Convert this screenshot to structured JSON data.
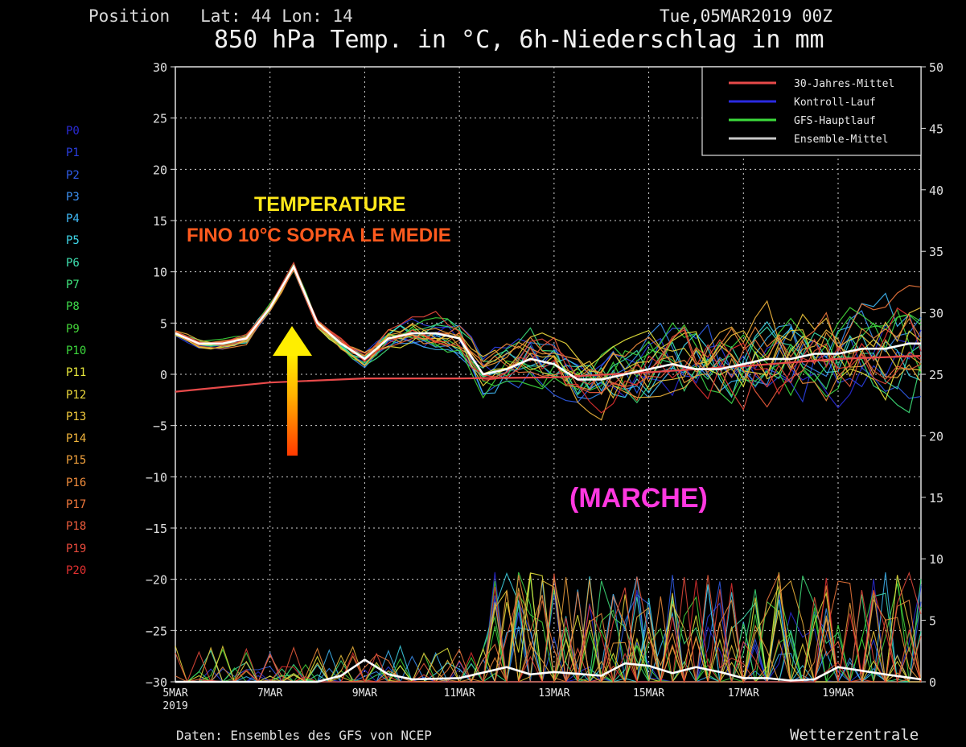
{
  "header": {
    "position": "Position   Lat: 44 Lon: 14",
    "date": "Tue,05MAR2019 00Z",
    "title": "850 hPa Temp. in °C, 6h-Niederschlag in mm"
  },
  "footer": {
    "source": "Daten: Ensembles des GFS von NCEP",
    "brand": "Wetterzentrale"
  },
  "members": [
    {
      "label": "P0",
      "color": "#2a2ad6"
    },
    {
      "label": "P1",
      "color": "#2a3ee0"
    },
    {
      "label": "P2",
      "color": "#2f5ce8"
    },
    {
      "label": "P3",
      "color": "#3b8ff0"
    },
    {
      "label": "P4",
      "color": "#3fb7f4"
    },
    {
      "label": "P5",
      "color": "#3ed6e8"
    },
    {
      "label": "P6",
      "color": "#3ee0b0"
    },
    {
      "label": "P7",
      "color": "#3ee07a"
    },
    {
      "label": "P8",
      "color": "#3ed84a"
    },
    {
      "label": "P9",
      "color": "#45d63a"
    },
    {
      "label": "P10",
      "color": "#3cd63c"
    },
    {
      "label": "P11",
      "color": "#e8e83c"
    },
    {
      "label": "P12",
      "color": "#ecd83c"
    },
    {
      "label": "P13",
      "color": "#f0c83c"
    },
    {
      "label": "P14",
      "color": "#f0b43c"
    },
    {
      "label": "P15",
      "color": "#f0a03c"
    },
    {
      "label": "P16",
      "color": "#f08c3c"
    },
    {
      "label": "P17",
      "color": "#f0783c"
    },
    {
      "label": "P18",
      "color": "#ec5c3c"
    },
    {
      "label": "P19",
      "color": "#e84a3c"
    },
    {
      "label": "P20",
      "color": "#e03030"
    }
  ],
  "annotations": {
    "line1": "TEMPERATURE",
    "line2": "FINO 10°C SOPRA LE MEDIE",
    "region": "(MARCHE)"
  },
  "chart_data": {
    "type": "line",
    "x_tick_labels": [
      "5MAR",
      "7MAR",
      "9MAR",
      "11MAR",
      "13MAR",
      "15MAR",
      "17MAR",
      "19MAR"
    ],
    "x_first_label_year": "2019",
    "left_axis": {
      "ylim": [
        -30,
        30
      ],
      "ticks": [
        30,
        25,
        20,
        15,
        10,
        5,
        0,
        -5,
        -10,
        -15,
        -20,
        -25,
        -30
      ]
    },
    "right_axis": {
      "ylim": [
        0,
        50
      ],
      "ticks": [
        50,
        45,
        40,
        35,
        30,
        25,
        20,
        15,
        10,
        5,
        0
      ]
    },
    "x_range_days": [
      0,
      15.75
    ],
    "grid": true,
    "legend": {
      "placement": "top-right",
      "entries": [
        {
          "name": "30-Jahres-Mittel",
          "color": "#e84a4a"
        },
        {
          "name": "Kontroll-Lauf",
          "color": "#2a2ae0"
        },
        {
          "name": "GFS-Hauptlauf",
          "color": "#3cdc3c"
        },
        {
          "name": "Ensemble-Mittel",
          "color": "#c8c8c8"
        }
      ]
    },
    "series": [
      {
        "name": "30-Jahres-Mittel",
        "axis": "left",
        "x": [
          0,
          2,
          4,
          6,
          8,
          10,
          12,
          14,
          15.75
        ],
        "y": [
          -1.7,
          -0.8,
          -0.4,
          -0.4,
          -0.3,
          0.2,
          0.8,
          1.5,
          1.8
        ]
      },
      {
        "name": "Ensemble-Mittel",
        "axis": "left",
        "x": [
          0,
          0.5,
          1,
          1.5,
          2,
          2.5,
          3,
          3.5,
          4,
          4.5,
          5,
          5.5,
          6,
          6.5,
          7,
          7.5,
          8,
          8.5,
          9,
          9.5,
          10,
          10.5,
          11,
          11.5,
          12,
          12.5,
          13,
          13.5,
          14,
          14.5,
          15,
          15.5,
          15.75
        ],
        "y": [
          4,
          3,
          3,
          3.5,
          6.5,
          10.5,
          5,
          3,
          1.5,
          3.5,
          4,
          4,
          3.5,
          0,
          0.5,
          1.5,
          1,
          -0.5,
          -0.5,
          0,
          0.5,
          1,
          0.5,
          0.5,
          1,
          1.5,
          1.5,
          2,
          2,
          2.5,
          2.5,
          3,
          3
        ]
      },
      {
        "name": "Ensemble-Mittel-Niederschlag",
        "axis": "right",
        "x": [
          0,
          1,
          2,
          3,
          3.5,
          4,
          4.5,
          5,
          6,
          7,
          7.5,
          8,
          9,
          9.5,
          10,
          10.5,
          11,
          11.5,
          12,
          12.5,
          13,
          13.5,
          14,
          15,
          15.75
        ],
        "y": [
          0,
          0,
          0,
          0,
          0.5,
          1.8,
          0.6,
          0.2,
          0.3,
          1.2,
          0.6,
          0.8,
          0.5,
          1.5,
          1.3,
          0.7,
          1.2,
          0.8,
          0.3,
          0.3,
          0.1,
          0.2,
          1.2,
          0.6,
          0.2
        ]
      }
    ]
  }
}
